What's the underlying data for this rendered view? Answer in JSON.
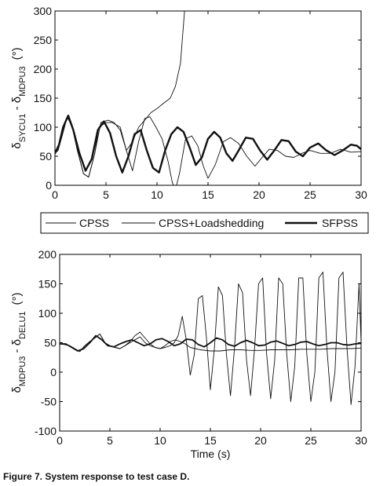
{
  "caption": "Figure 7. System response to test case D.",
  "colors": {
    "axis": "#000000",
    "line": "#111111",
    "background": "#ffffff"
  },
  "legend": {
    "placement": "between-panels",
    "entries": [
      {
        "name": "CPSS",
        "style": "thin"
      },
      {
        "name": "CPSS+Loadshedding",
        "style": "thin"
      },
      {
        "name": "SFPSS",
        "style": "thick"
      }
    ]
  },
  "chart_data": [
    {
      "type": "line",
      "ylabel": {
        "base": "δ",
        "sub1": "SYCU1",
        "mid": " - δ",
        "sub2": "MDPU3",
        "unit": "(°)"
      },
      "xlabel": "",
      "xlim": [
        0,
        30
      ],
      "ylim": [
        0,
        300
      ],
      "xticks": [
        0,
        5,
        10,
        15,
        20,
        25,
        30
      ],
      "yticks": [
        0,
        50,
        100,
        150,
        200,
        250,
        300
      ],
      "series": [
        {
          "name": "CPSS",
          "width": 0.9,
          "x": [
            0,
            0.3,
            0.7,
            1.2,
            1.7,
            2.2,
            2.8,
            3.3,
            3.9,
            4.3,
            5,
            5.6,
            6.4,
            7,
            7.6,
            8.2,
            8.8,
            9.4,
            10,
            10.7,
            11.3,
            11.8,
            12.3,
            12.7
          ],
          "y": [
            55,
            60,
            85,
            118,
            100,
            60,
            20,
            14,
            55,
            100,
            108,
            108,
            100,
            60,
            75,
            100,
            112,
            125,
            132,
            142,
            150,
            170,
            210,
            300
          ]
        },
        {
          "name": "CPSS+Loadshedding",
          "width": 0.9,
          "x": [
            0,
            0.3,
            0.7,
            1.2,
            1.7,
            2.2,
            2.8,
            3.3,
            3.9,
            4.5,
            5.2,
            5.8,
            6.4,
            7,
            7.6,
            8.2,
            8.8,
            9.3,
            9.9,
            10.5,
            11.1,
            11.5,
            11.8,
            12.2,
            12.8,
            13.4,
            14,
            14.5,
            15,
            15.7,
            16.5,
            17.2,
            18,
            18.8,
            19.6,
            20.3,
            21,
            21.8,
            22.6,
            23.4,
            24.2,
            25,
            26,
            27,
            28,
            29,
            30
          ],
          "y": [
            55,
            60,
            85,
            118,
            100,
            60,
            20,
            14,
            55,
            108,
            112,
            108,
            95,
            60,
            25,
            75,
            115,
            118,
            100,
            80,
            40,
            5,
            -8,
            20,
            80,
            85,
            68,
            35,
            12,
            35,
            75,
            82,
            72,
            50,
            33,
            48,
            62,
            60,
            50,
            48,
            55,
            60,
            55,
            55,
            62,
            57,
            58
          ]
        },
        {
          "name": "SFPSS",
          "width": 2.4,
          "x": [
            0,
            0.4,
            0.8,
            1.3,
            1.8,
            2.4,
            3,
            3.6,
            4.2,
            4.8,
            5.4,
            6,
            6.6,
            7.2,
            7.8,
            8.4,
            9,
            9.6,
            10.2,
            10.8,
            11.4,
            12,
            12.6,
            13.2,
            13.8,
            14.4,
            15,
            15.6,
            16.2,
            16.8,
            17.4,
            18,
            18.7,
            19.4,
            20.1,
            20.8,
            21.5,
            22.2,
            22.9,
            23.6,
            24.3,
            25,
            25.8,
            26.6,
            27.4,
            28.2,
            29,
            29.6,
            30
          ],
          "y": [
            55,
            70,
            100,
            120,
            95,
            55,
            25,
            45,
            95,
            110,
            90,
            50,
            22,
            50,
            88,
            95,
            60,
            30,
            22,
            60,
            88,
            100,
            92,
            65,
            35,
            48,
            80,
            92,
            82,
            55,
            42,
            60,
            82,
            80,
            60,
            44,
            60,
            78,
            76,
            58,
            50,
            65,
            72,
            60,
            52,
            60,
            70,
            68,
            62
          ]
        }
      ]
    },
    {
      "type": "line",
      "ylabel": {
        "base": "δ",
        "sub1": "MDPU3",
        "mid": " - δ",
        "sub2": "DELU1",
        "unit": "(°)"
      },
      "xlabel": "Time (s)",
      "xlim": [
        0,
        30
      ],
      "ylim": [
        -100,
        200
      ],
      "xticks": [
        0,
        5,
        10,
        15,
        20,
        25,
        30
      ],
      "yticks": [
        -100,
        -50,
        0,
        50,
        100,
        150,
        200
      ],
      "series": [
        {
          "name": "CPSS",
          "width": 0.9,
          "x": [
            0,
            0.5,
            1,
            1.5,
            2,
            2.5,
            3,
            3.5,
            4,
            4.5,
            5,
            5.5,
            6,
            6.5,
            7,
            7.5,
            8,
            8.5,
            9,
            9.5,
            10,
            10.5,
            11,
            11.4,
            11.8,
            12.2,
            12.6,
            13,
            13.4,
            13.8,
            14.2,
            14.6,
            15,
            15.4,
            15.8,
            16.2,
            16.6,
            17,
            17.4,
            17.8,
            18.2,
            18.6,
            19,
            19.4,
            19.8,
            20.2,
            20.6,
            21,
            21.4,
            21.8,
            22.2,
            22.6,
            23,
            23.4,
            23.8,
            24.2,
            24.6,
            25,
            25.4,
            25.8,
            26.2,
            26.6,
            27,
            27.4,
            27.8,
            28.2,
            28.6,
            29,
            29.4,
            29.8,
            30
          ],
          "y": [
            48,
            47,
            45,
            40,
            35,
            45,
            52,
            58,
            65,
            50,
            45,
            42,
            40,
            45,
            50,
            55,
            60,
            50,
            45,
            42,
            40,
            42,
            45,
            50,
            62,
            95,
            55,
            -5,
            30,
            125,
            130,
            60,
            -30,
            40,
            145,
            130,
            30,
            -40,
            40,
            150,
            135,
            20,
            -40,
            40,
            150,
            160,
            30,
            -45,
            20,
            160,
            150,
            30,
            -50,
            10,
            160,
            160,
            30,
            -50,
            0,
            160,
            170,
            40,
            -50,
            0,
            160,
            170,
            40,
            -55,
            10,
            150,
            50
          ]
        },
        {
          "name": "CPSS+Loadshedding",
          "width": 0.9,
          "x": [
            0,
            0.5,
            1,
            1.5,
            2,
            2.5,
            3,
            3.5,
            4,
            4.5,
            5,
            5.5,
            6,
            6.5,
            7,
            7.5,
            8,
            8.5,
            9,
            9.5,
            10,
            10.5,
            11,
            11.5,
            12,
            12.5,
            13,
            13.5,
            14,
            15,
            16,
            17,
            18,
            19,
            20,
            21,
            22,
            23,
            24,
            25,
            26,
            27,
            28,
            29,
            30
          ],
          "y": [
            48,
            47,
            45,
            40,
            35,
            45,
            52,
            58,
            65,
            50,
            45,
            42,
            40,
            45,
            52,
            62,
            68,
            58,
            48,
            42,
            40,
            45,
            52,
            55,
            52,
            48,
            42,
            40,
            38,
            36,
            36,
            38,
            38,
            37,
            37,
            38,
            38,
            38,
            39,
            39,
            39,
            40,
            40,
            40,
            41
          ]
        },
        {
          "name": "SFPSS",
          "width": 1.8,
          "x": [
            0,
            0.6,
            1.2,
            1.8,
            2.4,
            3,
            3.6,
            4.2,
            4.8,
            5.4,
            6,
            6.6,
            7.2,
            7.8,
            8.4,
            9,
            9.6,
            10.2,
            10.8,
            11.4,
            12,
            12.6,
            13.2,
            13.8,
            14.4,
            15,
            15.6,
            16.2,
            16.8,
            17.4,
            18,
            18.6,
            19.2,
            19.8,
            20.4,
            21,
            21.6,
            22.2,
            22.8,
            23.4,
            24,
            24.6,
            25.2,
            25.8,
            26.4,
            27,
            27.6,
            28.2,
            28.8,
            29.4,
            30
          ],
          "y": [
            48,
            48,
            42,
            36,
            40,
            50,
            62,
            55,
            45,
            43,
            48,
            52,
            55,
            50,
            45,
            48,
            55,
            57,
            52,
            45,
            48,
            56,
            55,
            47,
            43,
            50,
            58,
            55,
            47,
            44,
            50,
            54,
            50,
            45,
            46,
            51,
            53,
            49,
            45,
            47,
            51,
            52,
            48,
            45,
            47,
            50,
            50,
            47,
            46,
            48,
            49
          ]
        }
      ]
    }
  ]
}
